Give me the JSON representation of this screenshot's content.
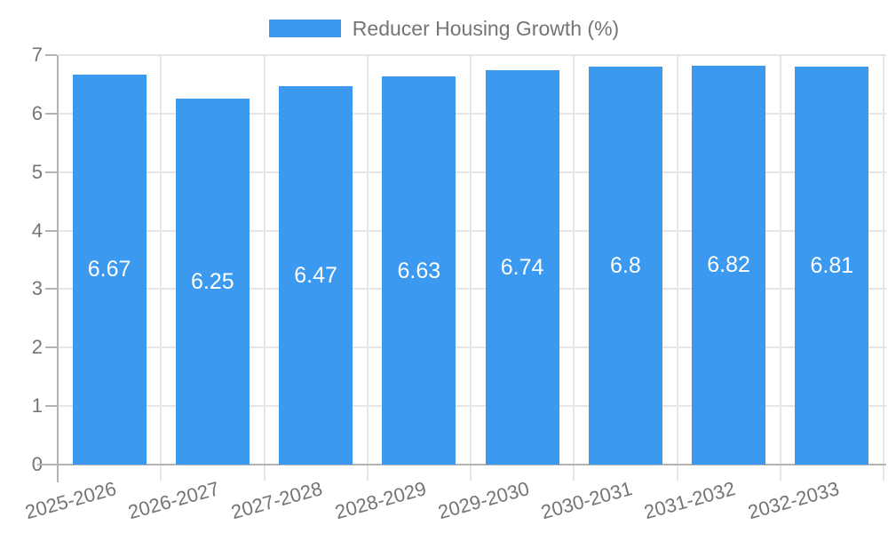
{
  "chart_data": {
    "type": "bar",
    "title": "Reducer Housing Growth (%)",
    "legend_position": "top",
    "categories": [
      "2025-2026",
      "2026-2027",
      "2027-2028",
      "2028-2029",
      "2029-2030",
      "2030-2031",
      "2031-2032",
      "2032-2033"
    ],
    "values": [
      6.67,
      6.25,
      6.47,
      6.63,
      6.74,
      6.8,
      6.82,
      6.81
    ],
    "value_labels": [
      "6.67",
      "6.25",
      "6.47",
      "6.63",
      "6.74",
      "6.8",
      "6.82",
      "6.81"
    ],
    "xlabel": "",
    "ylabel": "",
    "ylim": [
      0,
      7
    ],
    "yticks": [
      0,
      1,
      2,
      3,
      4,
      5,
      6,
      7
    ],
    "grid": true,
    "bar_color": "#3b99f0",
    "value_label_color": "#ffffff"
  },
  "colors": {
    "grid": "#e6e6e6",
    "axis": "#b3b3b3",
    "text": "#757575",
    "background": "#ffffff"
  }
}
